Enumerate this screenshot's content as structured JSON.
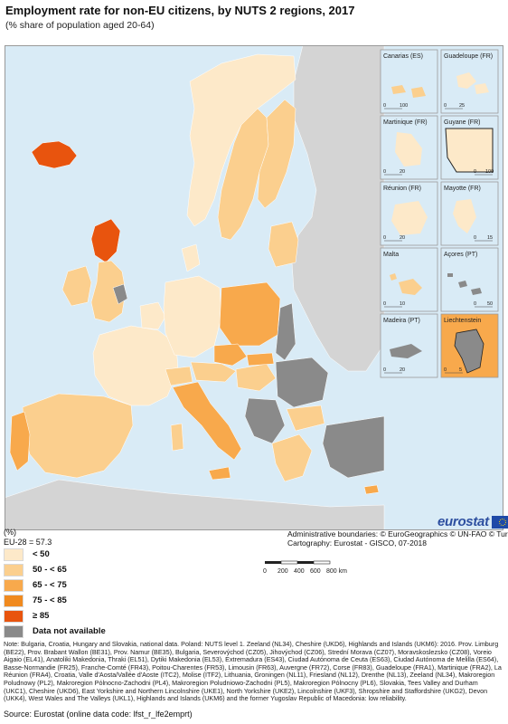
{
  "title": "Employment rate for non-EU citizens, by NUTS 2 regions, 2017",
  "subtitle": "(% share of population aged 20-64)",
  "colors": {
    "sea": "#d9ebf6",
    "no_data": "#8a8a8a",
    "non_eu_land": "#d4d4d4",
    "class_lt50": "#fde9c9",
    "class_50_65": "#fbcf8e",
    "class_65_75": "#f8a94c",
    "class_75_85": "#f08a1f",
    "class_ge85": "#e8540e"
  },
  "insets": [
    {
      "name": "Canarias (ES)",
      "scale_values": [
        "0",
        "100"
      ]
    },
    {
      "name": "Guadeloupe (FR)",
      "scale_values": [
        "0",
        "25"
      ]
    },
    {
      "name": "Martinique (FR)",
      "scale_values": [
        "0",
        "20"
      ]
    },
    {
      "name": "Guyane (FR)",
      "scale_values": [
        "0",
        "100"
      ]
    },
    {
      "name": "Réunion (FR)",
      "scale_values": [
        "0",
        "20"
      ]
    },
    {
      "name": "Mayotte (FR)",
      "scale_values": [
        "0",
        "15"
      ]
    },
    {
      "name": "Malta",
      "scale_values": [
        "0",
        "10"
      ]
    },
    {
      "name": "Açores (PT)",
      "scale_values": [
        "0",
        "50"
      ]
    },
    {
      "name": "Madeira (PT)",
      "scale_values": [
        "0",
        "20"
      ]
    },
    {
      "name": "Liechtenstein",
      "scale_values": [
        "0",
        "5"
      ]
    }
  ],
  "legend": {
    "unit": "(%)",
    "eu_average": "EU-28 = 57.3",
    "items": [
      {
        "label": "< 50",
        "color": "#fde9c9"
      },
      {
        "label": "50 - < 65",
        "color": "#fbcf8e"
      },
      {
        "label": "65 - < 75",
        "color": "#f8a94c"
      },
      {
        "label": "75 - < 85",
        "color": "#f08a1f"
      },
      {
        "label": "≥ 85",
        "color": "#e8540e"
      },
      {
        "label": "Data not available",
        "color": "#8a8a8a"
      }
    ]
  },
  "credits": {
    "boundaries": "Administrative boundaries: © EuroGeographics © UN-FAO © Turkstat",
    "cartography": "Cartography: Eurostat - GISCO, 07-2018"
  },
  "logo": {
    "text": "eurostat"
  },
  "scale_bar": {
    "ticks": [
      "0",
      "200",
      "400",
      "600",
      "800 km"
    ]
  },
  "note": "Note: Bulgaria, Croatia, Hungary and Slovakia, national data. Poland: NUTS level 1. Zeeland (NL34), Cheshire (UKD6), Highlands and Islands (UKM6): 2016. Prov. Limburg (BE22), Prov. Brabant Wallon (BE31), Prov. Namur (BE35), Bulgaria, Severovýchod (CZ05), Jihovýchod (CZ06), Strední Morava (CZ07), Moravskoslezsko (CZ08), Voreio Aigaio (EL41), Anatoliki Makedonia, Thraki (EL51), Dytiki Makedonia (EL53), Extremadura (ES43), Ciudad Autónoma de Ceuta (ES63), Ciudad Autónoma de Melilla (ES64), Basse-Normandie (FR25), Franche-Comté (FR43), Poitou-Charentes (FR53), Limousin (FR63), Auvergne (FR72), Corse (FR83), Guadeloupe (FRA1), Martinique (FRA2), La Réunion (FRA4), Croatia, Valle d'Aosta/Vallée d'Aoste (ITC2), Molise (ITF2), Lithuania, Groningen (NL11), Friesland (NL12), Drenthe (NL13), Zeeland (NL34), Makroregion Poludnowy (PL2), Makroregion Pólnocno-Zachodni (PL4), Makroregion Poludniowo-Zachodni (PL5), Makroregion Pólnocny (PL6), Slovakia, Tees Valley and Durham (UKC1), Cheshire (UKD6), East Yorkshire and Northern Lincolnshire (UKE1), North Yorkshire (UKE2), Lincolnshire (UKF3), Shropshire and Staffordshire (UKG2), Devon (UKK4), West Wales and The Valleys (UKL1), Highlands and Islands (UKM6) and the former Yugoslav Republic of Macedonia: low reliability.",
  "source": "Source: Eurostat (online data code: lfst_r_lfe2emprt)"
}
